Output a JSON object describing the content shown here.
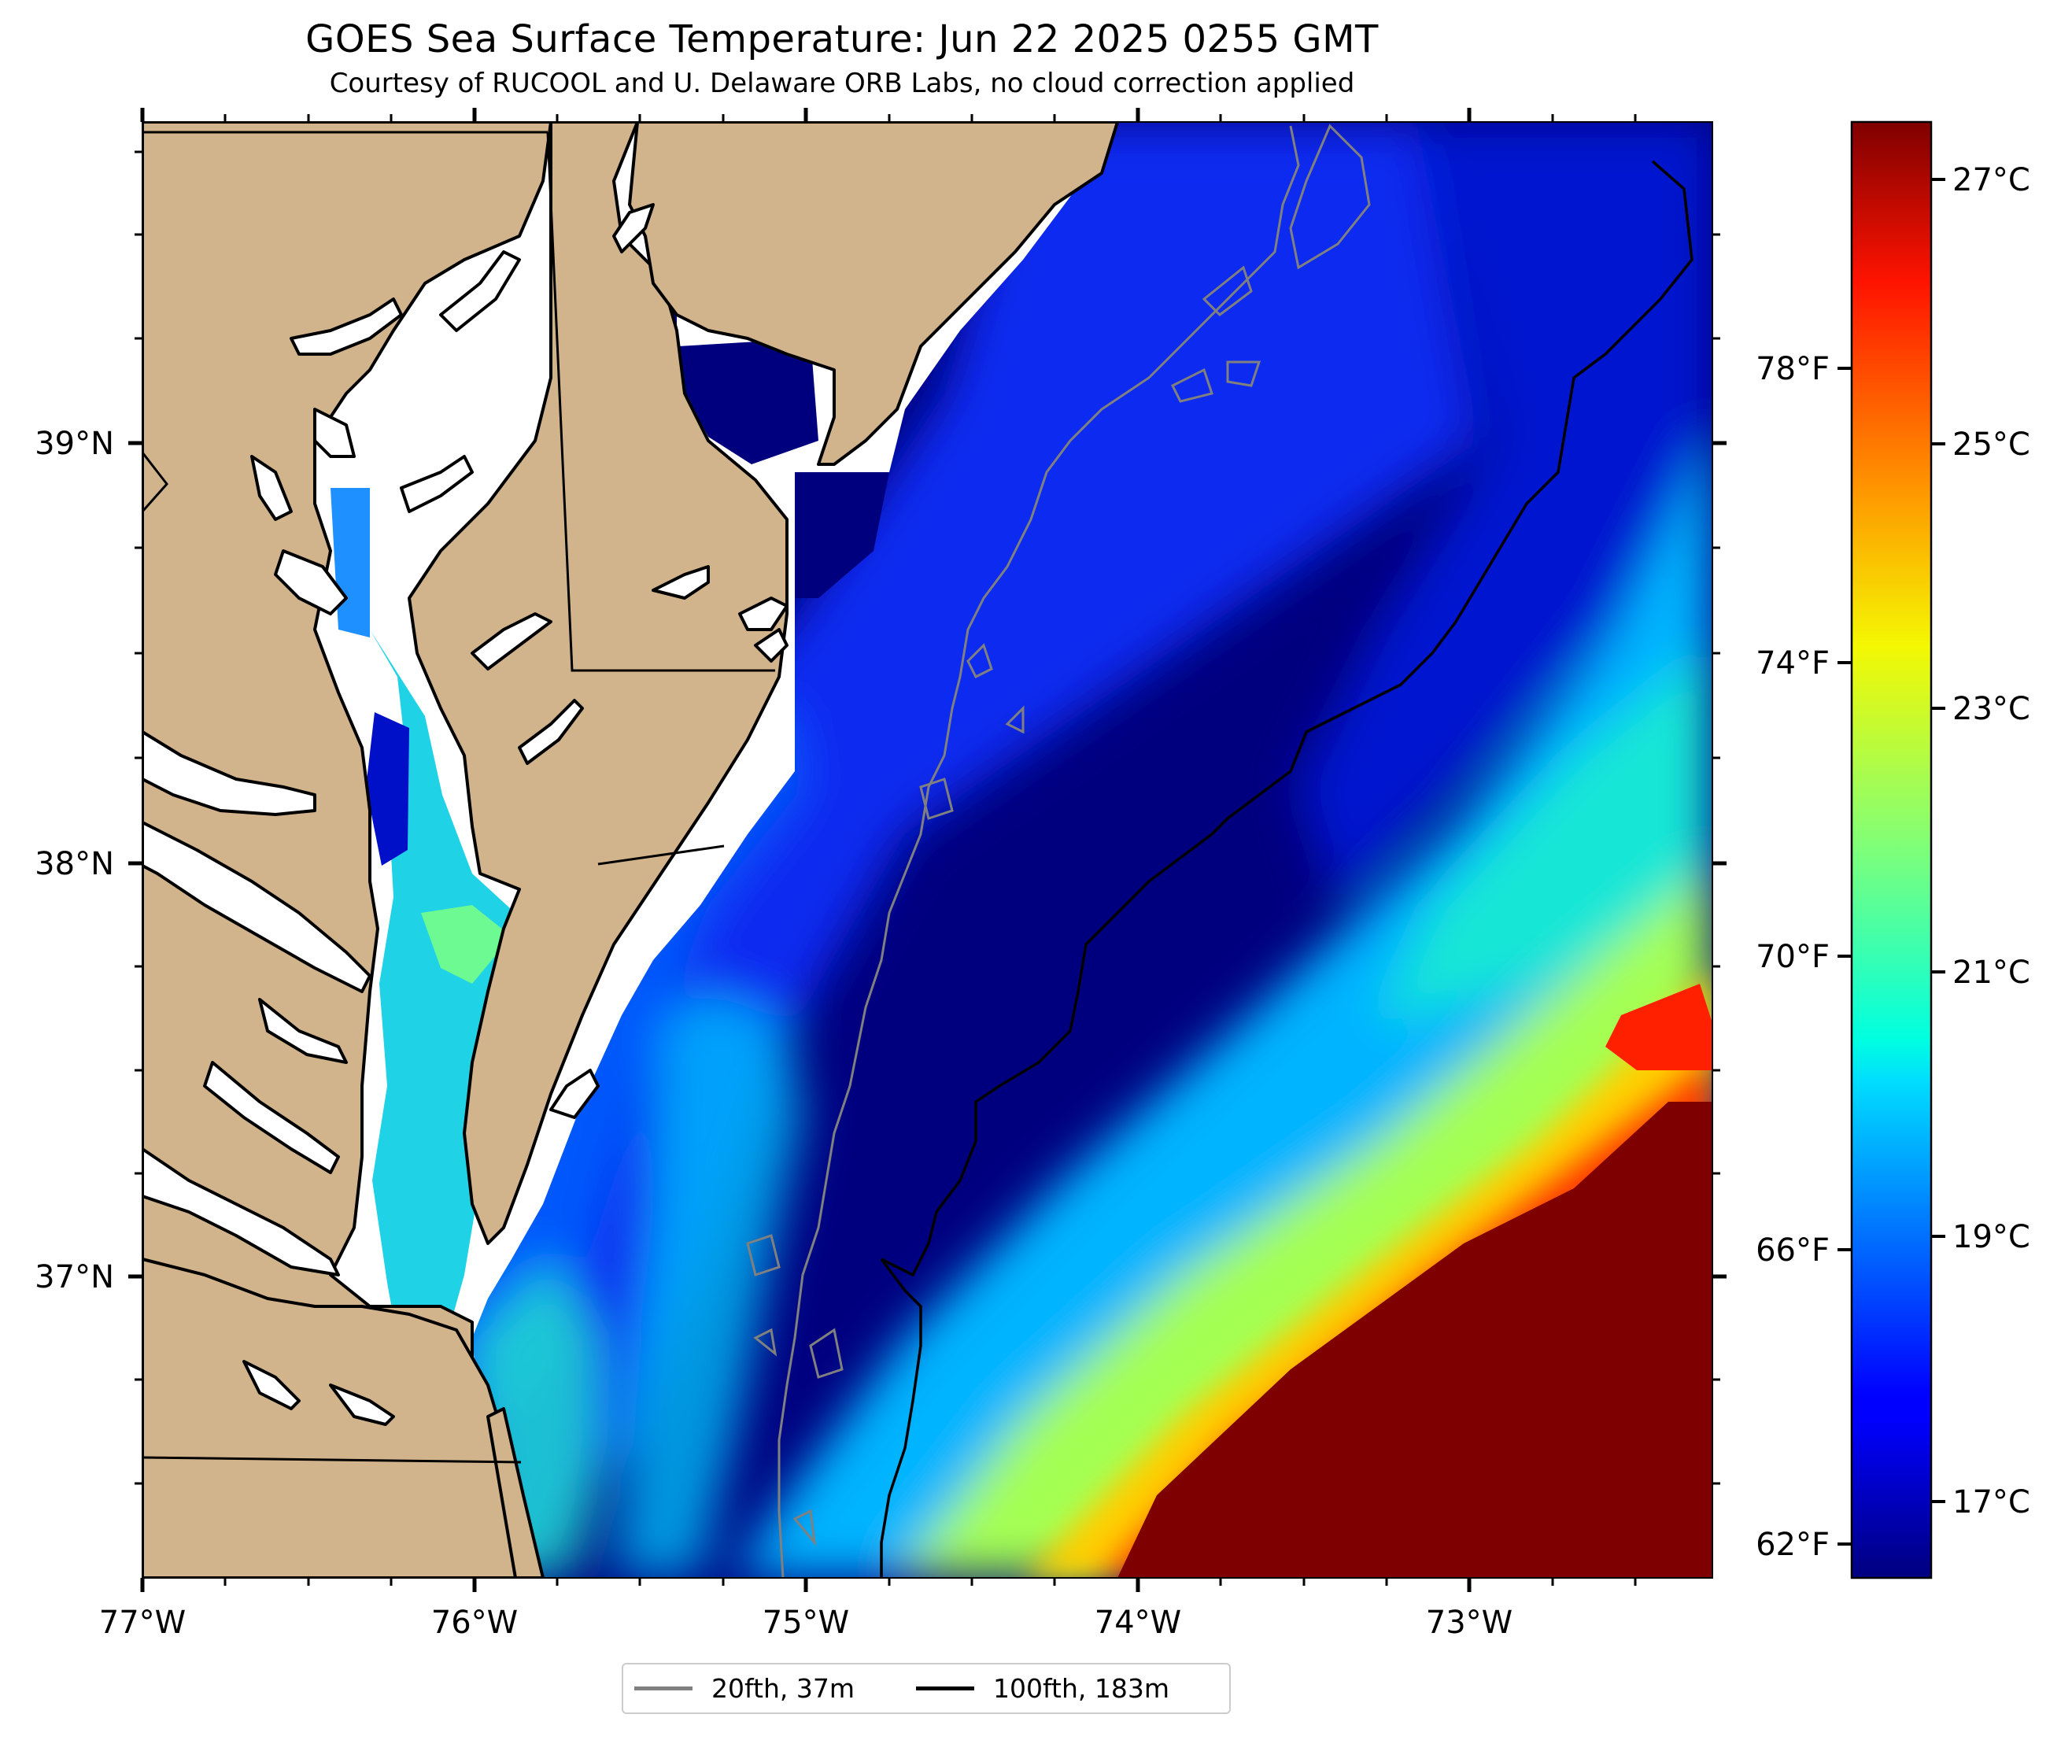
{
  "title": "GOES Sea Surface Temperature: Jun 22 2025 0255 GMT",
  "subtitle": "Courtesy of RUCOOL and U. Delaware ORB Labs, no cloud correction applied",
  "colors": {
    "land": "#d2b48c",
    "deep_ocean": "#00007f",
    "coast_line": "#000000",
    "isobath_20fth": "#808080",
    "isobath_100fth": "#000000"
  },
  "chart_data": {
    "type": "heatmap",
    "variable": "sea surface temperature",
    "lon_ticks": [
      "77°W",
      "76°W",
      "75°W",
      "74°W",
      "73°W"
    ],
    "lat_ticks": [
      "39°N",
      "38°N",
      "37°N"
    ],
    "lon_range": [
      -77.0,
      -72.25
    ],
    "lat_range": [
      36.25,
      39.7
    ],
    "colorbar": {
      "colormap": "jet",
      "range_c": [
        16.0,
        27.5
      ],
      "celsius_ticks": [
        "27°C",
        "25°C",
        "23°C",
        "21°C",
        "19°C",
        "17°C"
      ],
      "fahrenheit_ticks": [
        "78°F",
        "74°F",
        "70°F",
        "66°F",
        "62°F"
      ]
    },
    "legend": {
      "placement": "bottom-center",
      "entries": [
        {
          "label": "20fth, 37m",
          "color": "#808080"
        },
        {
          "label": "100fth, 183m",
          "color": "#000000"
        }
      ]
    }
  }
}
